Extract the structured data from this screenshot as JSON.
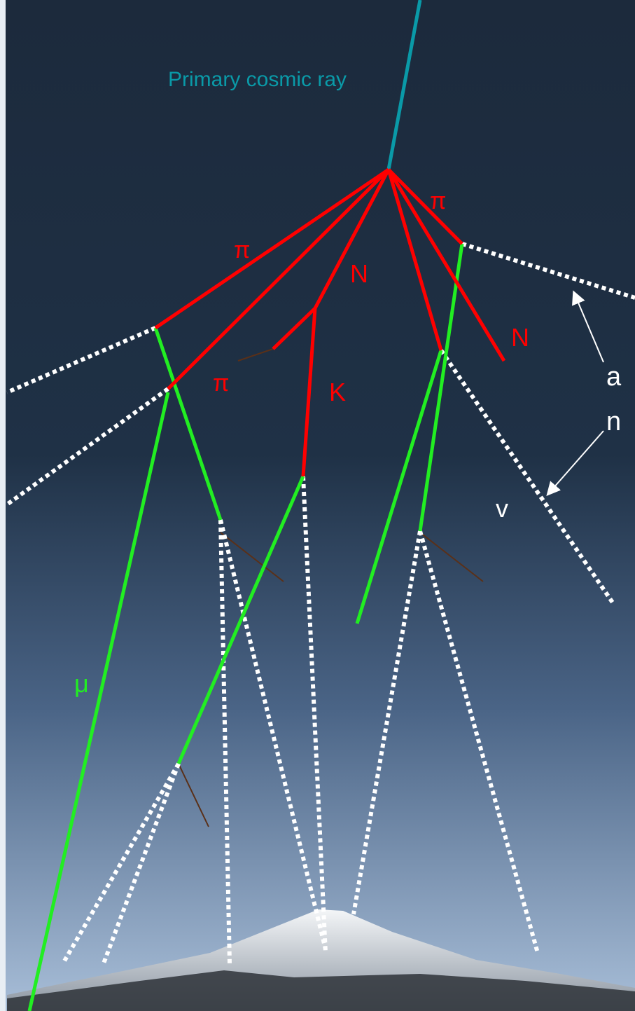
{
  "labels": [
    "Primary cosmic ray",
    "π",
    "N",
    "π",
    "K",
    "π",
    "N",
    "a",
    "n",
    "v",
    "μ"
  ]
}
